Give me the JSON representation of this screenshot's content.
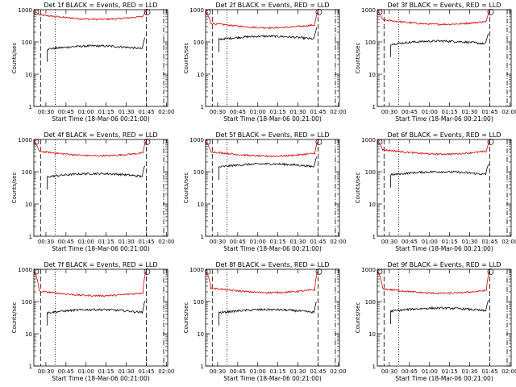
{
  "layout": {
    "rows": 3,
    "cols": 3
  },
  "shared": {
    "xlabel": "Start Time (18-Mar-06 00:21:00)",
    "ylabel": "Counts/sec",
    "ylim": [
      1,
      1000
    ],
    "yscale": "log",
    "y_ticks": [
      "1",
      "10",
      "100",
      "1000"
    ],
    "xlim_minutes": [
      0,
      100
    ],
    "x_ticks": [
      {
        "label": "00:30",
        "min": 9
      },
      {
        "label": "00:45",
        "min": 24
      },
      {
        "label": "01:00",
        "min": 39
      },
      {
        "label": "01:15",
        "min": 54
      },
      {
        "label": "01:30",
        "min": 69
      },
      {
        "label": "01:45",
        "min": 84
      },
      {
        "label": "02:00",
        "min": 99
      }
    ],
    "dashed_markers_min": [
      5,
      84,
      97
    ],
    "dotted_marker_min": 16,
    "series_colors": {
      "events": "#000000",
      "lld": "#dd0000"
    },
    "event_span_min": [
      10,
      83
    ],
    "lld_span_min": [
      0,
      84
    ]
  },
  "charts": [
    {
      "title": "Det 1f BLACK = Events, RED = LLD",
      "events_level": 60,
      "lld_level": 530,
      "lld_start": 950,
      "dotted": 16
    },
    {
      "title": "Det 2f BLACK = Events, RED = LLD",
      "events_level": 120,
      "lld_level": 290,
      "lld_start": 900,
      "dotted": 16
    },
    {
      "title": "Det 3f BLACK = Events, RED = LLD",
      "events_level": 85,
      "lld_level": 370,
      "lld_start": 950,
      "dotted": 16
    },
    {
      "title": "Det 4f BLACK = Events, RED = LLD",
      "events_level": 70,
      "lld_level": 330,
      "lld_start": 950,
      "dotted": 16
    },
    {
      "title": "Det 5f BLACK = Events, RED = LLD",
      "events_level": 140,
      "lld_level": 320,
      "lld_start": 900,
      "dotted": 16
    },
    {
      "title": "Det 6f BLACK = Events, RED = LLD",
      "events_level": 80,
      "lld_level": 370,
      "lld_start": 950,
      "dotted": 16
    },
    {
      "title": "Det 7f BLACK = Events, RED = LLD",
      "events_level": 45,
      "lld_level": 160,
      "lld_start": 950,
      "dotted": 16
    },
    {
      "title": "Det 8f BLACK = Events, RED = LLD",
      "events_level": 45,
      "lld_level": 200,
      "lld_start": 950,
      "dotted": 16
    },
    {
      "title": "Det 9f BLACK = Events, RED = LLD",
      "events_level": 50,
      "lld_level": 190,
      "lld_start": 950,
      "dotted": 16
    }
  ],
  "chart_data": [
    {
      "type": "line",
      "title": "Det 1f BLACK = Events, RED = LLD",
      "xlabel": "Start Time (18-Mar-06 00:21:00)",
      "ylabel": "Counts/sec",
      "ylim": [
        1,
        1000
      ],
      "series": [
        {
          "name": "Events",
          "color": "#000000",
          "approx_level": 60
        },
        {
          "name": "LLD",
          "color": "#dd0000",
          "approx_level": 530
        }
      ]
    },
    {
      "type": "line",
      "title": "Det 2f BLACK = Events, RED = LLD",
      "xlabel": "Start Time (18-Mar-06 00:21:00)",
      "ylabel": "Counts/sec",
      "ylim": [
        1,
        1000
      ],
      "series": [
        {
          "name": "Events",
          "color": "#000000",
          "approx_level": 120
        },
        {
          "name": "LLD",
          "color": "#dd0000",
          "approx_level": 290
        }
      ]
    },
    {
      "type": "line",
      "title": "Det 3f BLACK = Events, RED = LLD",
      "xlabel": "Start Time (18-Mar-06 00:21:00)",
      "ylabel": "Counts/sec",
      "ylim": [
        1,
        1000
      ],
      "series": [
        {
          "name": "Events",
          "color": "#000000",
          "approx_level": 85
        },
        {
          "name": "LLD",
          "color": "#dd0000",
          "approx_level": 370
        }
      ]
    },
    {
      "type": "line",
      "title": "Det 4f BLACK = Events, RED = LLD",
      "xlabel": "Start Time (18-Mar-06 00:21:00)",
      "ylabel": "Counts/sec",
      "ylim": [
        1,
        1000
      ],
      "series": [
        {
          "name": "Events",
          "color": "#000000",
          "approx_level": 70
        },
        {
          "name": "LLD",
          "color": "#dd0000",
          "approx_level": 330
        }
      ]
    },
    {
      "type": "line",
      "title": "Det 5f BLACK = Events, RED = LLD",
      "xlabel": "Start Time (18-Mar-06 00:21:00)",
      "ylabel": "Counts/sec",
      "ylim": [
        1,
        1000
      ],
      "series": [
        {
          "name": "Events",
          "color": "#000000",
          "approx_level": 140
        },
        {
          "name": "LLD",
          "color": "#dd0000",
          "approx_level": 320
        }
      ]
    },
    {
      "type": "line",
      "title": "Det 6f BLACK = Events, RED = LLD",
      "xlabel": "Start Time (18-Mar-06 00:21:00)",
      "ylabel": "Counts/sec",
      "ylim": [
        1,
        1000
      ],
      "series": [
        {
          "name": "Events",
          "color": "#000000",
          "approx_level": 80
        },
        {
          "name": "LLD",
          "color": "#dd0000",
          "approx_level": 370
        }
      ]
    },
    {
      "type": "line",
      "title": "Det 7f BLACK = Events, RED = LLD",
      "xlabel": "Start Time (18-Mar-06 00:21:00)",
      "ylabel": "Counts/sec",
      "ylim": [
        1,
        1000
      ],
      "series": [
        {
          "name": "Events",
          "color": "#000000",
          "approx_level": 45
        },
        {
          "name": "LLD",
          "color": "#dd0000",
          "approx_level": 160
        }
      ]
    },
    {
      "type": "line",
      "title": "Det 8f BLACK = Events, RED = LLD",
      "xlabel": "Start Time (18-Mar-06 00:21:00)",
      "ylabel": "Counts/sec",
      "ylim": [
        1,
        1000
      ],
      "series": [
        {
          "name": "Events",
          "color": "#000000",
          "approx_level": 45
        },
        {
          "name": "LLD",
          "color": "#dd0000",
          "approx_level": 200
        }
      ]
    },
    {
      "type": "line",
      "title": "Det 9f BLACK = Events, RED = LLD",
      "xlabel": "Start Time (18-Mar-06 00:21:00)",
      "ylabel": "Counts/sec",
      "ylim": [
        1,
        1000
      ],
      "series": [
        {
          "name": "Events",
          "color": "#000000",
          "approx_level": 50
        },
        {
          "name": "LLD",
          "color": "#dd0000",
          "approx_level": 190
        }
      ]
    }
  ]
}
